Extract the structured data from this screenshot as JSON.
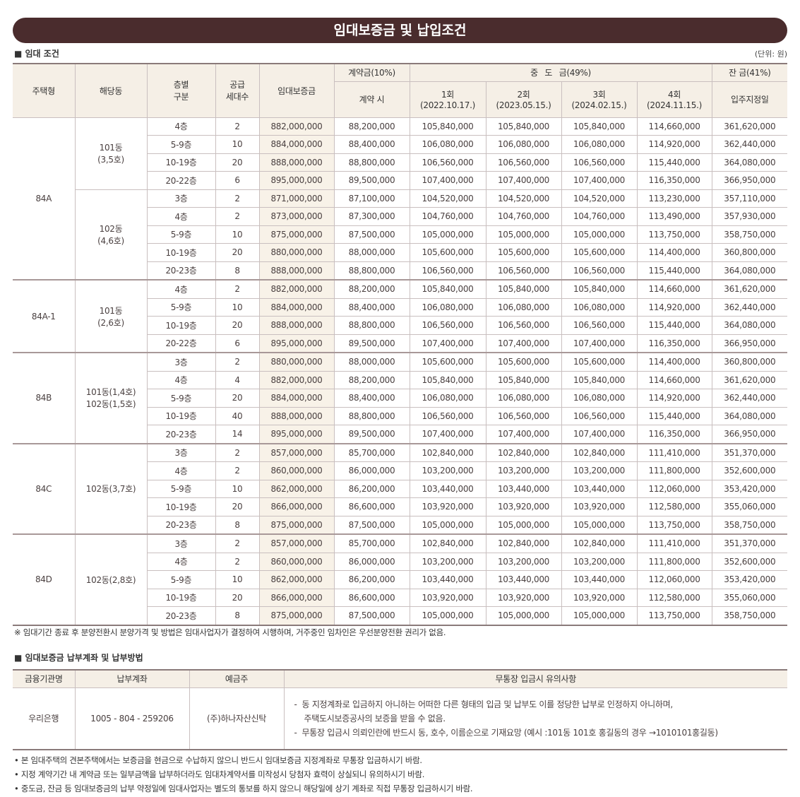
{
  "banner_title": "임대보증금 및 납입조건",
  "section1": {
    "title": "■ 임대 조건",
    "unit": "(단위: 원)"
  },
  "table1": {
    "headers": {
      "type": "주택형",
      "dong": "해당동",
      "floor": "층별\n구분",
      "units": "공급\n세대수",
      "deposit": "임대보증금",
      "contract_group": "계약금(10%)",
      "contract": "계약 시",
      "middle_group": "중 도 금(49%)",
      "m1": "1회\n(2022.10.17.)",
      "m2": "2회\n(2023.05.15.)",
      "m3": "3회\n(2024.02.15.)",
      "m4": "4회\n(2024.11.15.)",
      "balance_group": "잔 금(41%)",
      "balance": "입주지정일"
    },
    "groups": [
      {
        "type": "84A",
        "dongs": [
          {
            "dong": "101동\n(3,5호)",
            "rows": [
              [
                "4층",
                "2",
                "882,000,000",
                "88,200,000",
                "105,840,000",
                "105,840,000",
                "105,840,000",
                "114,660,000",
                "361,620,000"
              ],
              [
                "5-9층",
                "10",
                "884,000,000",
                "88,400,000",
                "106,080,000",
                "106,080,000",
                "106,080,000",
                "114,920,000",
                "362,440,000"
              ],
              [
                "10-19층",
                "20",
                "888,000,000",
                "88,800,000",
                "106,560,000",
                "106,560,000",
                "106,560,000",
                "115,440,000",
                "364,080,000"
              ],
              [
                "20-22층",
                "6",
                "895,000,000",
                "89,500,000",
                "107,400,000",
                "107,400,000",
                "107,400,000",
                "116,350,000",
                "366,950,000"
              ]
            ]
          },
          {
            "dong": "102동\n(4,6호)",
            "rows": [
              [
                "3층",
                "2",
                "871,000,000",
                "87,100,000",
                "104,520,000",
                "104,520,000",
                "104,520,000",
                "113,230,000",
                "357,110,000"
              ],
              [
                "4층",
                "2",
                "873,000,000",
                "87,300,000",
                "104,760,000",
                "104,760,000",
                "104,760,000",
                "113,490,000",
                "357,930,000"
              ],
              [
                "5-9층",
                "10",
                "875,000,000",
                "87,500,000",
                "105,000,000",
                "105,000,000",
                "105,000,000",
                "113,750,000",
                "358,750,000"
              ],
              [
                "10-19층",
                "20",
                "880,000,000",
                "88,000,000",
                "105,600,000",
                "105,600,000",
                "105,600,000",
                "114,400,000",
                "360,800,000"
              ],
              [
                "20-23층",
                "8",
                "888,000,000",
                "88,800,000",
                "106,560,000",
                "106,560,000",
                "106,560,000",
                "115,440,000",
                "364,080,000"
              ]
            ]
          }
        ]
      },
      {
        "type": "84A-1",
        "dongs": [
          {
            "dong": "101동\n(2,6호)",
            "rows": [
              [
                "4층",
                "2",
                "882,000,000",
                "88,200,000",
                "105,840,000",
                "105,840,000",
                "105,840,000",
                "114,660,000",
                "361,620,000"
              ],
              [
                "5-9층",
                "10",
                "884,000,000",
                "88,400,000",
                "106,080,000",
                "106,080,000",
                "106,080,000",
                "114,920,000",
                "362,440,000"
              ],
              [
                "10-19층",
                "20",
                "888,000,000",
                "88,800,000",
                "106,560,000",
                "106,560,000",
                "106,560,000",
                "115,440,000",
                "364,080,000"
              ],
              [
                "20-22층",
                "6",
                "895,000,000",
                "89,500,000",
                "107,400,000",
                "107,400,000",
                "107,400,000",
                "116,350,000",
                "366,950,000"
              ]
            ]
          }
        ]
      },
      {
        "type": "84B",
        "dongs": [
          {
            "dong": "101동(1,4호)\n102동(1,5호)",
            "rows": [
              [
                "3층",
                "2",
                "880,000,000",
                "88,000,000",
                "105,600,000",
                "105,600,000",
                "105,600,000",
                "114,400,000",
                "360,800,000"
              ],
              [
                "4층",
                "4",
                "882,000,000",
                "88,200,000",
                "105,840,000",
                "105,840,000",
                "105,840,000",
                "114,660,000",
                "361,620,000"
              ],
              [
                "5-9층",
                "20",
                "884,000,000",
                "88,400,000",
                "106,080,000",
                "106,080,000",
                "106,080,000",
                "114,920,000",
                "362,440,000"
              ],
              [
                "10-19층",
                "40",
                "888,000,000",
                "88,800,000",
                "106,560,000",
                "106,560,000",
                "106,560,000",
                "115,440,000",
                "364,080,000"
              ],
              [
                "20-23층",
                "14",
                "895,000,000",
                "89,500,000",
                "107,400,000",
                "107,400,000",
                "107,400,000",
                "116,350,000",
                "366,950,000"
              ]
            ]
          }
        ]
      },
      {
        "type": "84C",
        "dongs": [
          {
            "dong": "102동(3,7호)",
            "rows": [
              [
                "3층",
                "2",
                "857,000,000",
                "85,700,000",
                "102,840,000",
                "102,840,000",
                "102,840,000",
                "111,410,000",
                "351,370,000"
              ],
              [
                "4층",
                "2",
                "860,000,000",
                "86,000,000",
                "103,200,000",
                "103,200,000",
                "103,200,000",
                "111,800,000",
                "352,600,000"
              ],
              [
                "5-9층",
                "10",
                "862,000,000",
                "86,200,000",
                "103,440,000",
                "103,440,000",
                "103,440,000",
                "112,060,000",
                "353,420,000"
              ],
              [
                "10-19층",
                "20",
                "866,000,000",
                "86,600,000",
                "103,920,000",
                "103,920,000",
                "103,920,000",
                "112,580,000",
                "355,060,000"
              ],
              [
                "20-23층",
                "8",
                "875,000,000",
                "87,500,000",
                "105,000,000",
                "105,000,000",
                "105,000,000",
                "113,750,000",
                "358,750,000"
              ]
            ]
          }
        ]
      },
      {
        "type": "84D",
        "dongs": [
          {
            "dong": "102동(2,8호)",
            "rows": [
              [
                "3층",
                "2",
                "857,000,000",
                "85,700,000",
                "102,840,000",
                "102,840,000",
                "102,840,000",
                "111,410,000",
                "351,370,000"
              ],
              [
                "4층",
                "2",
                "860,000,000",
                "86,000,000",
                "103,200,000",
                "103,200,000",
                "103,200,000",
                "111,800,000",
                "352,600,000"
              ],
              [
                "5-9층",
                "10",
                "862,000,000",
                "86,200,000",
                "103,440,000",
                "103,440,000",
                "103,440,000",
                "112,060,000",
                "353,420,000"
              ],
              [
                "10-19층",
                "20",
                "866,000,000",
                "86,600,000",
                "103,920,000",
                "103,920,000",
                "103,920,000",
                "112,580,000",
                "355,060,000"
              ],
              [
                "20-23층",
                "8",
                "875,000,000",
                "87,500,000",
                "105,000,000",
                "105,000,000",
                "105,000,000",
                "113,750,000",
                "358,750,000"
              ]
            ]
          }
        ]
      }
    ]
  },
  "note1": "※ 임대기간 종료 후 분양전환시 분양가격 및 방법은 임대사업자가 결정하여 시행하며, 거주중인 임차인은 우선분양전환 권리가 없음.",
  "section2": {
    "title": "■ 임대보증금 납부계좌 및 납부방법"
  },
  "table2": {
    "headers": [
      "금융기관명",
      "납부계좌",
      "예금주",
      "무통장 입금시 유의사항"
    ],
    "row": {
      "bank": "우리은행",
      "account": "1005 - 804 - 259206",
      "holder": "(주)하나자산신탁",
      "notes": [
        "-  동 지정계좌로 입금하지 아니하는 어떠한 다른 형태의 입금 및 납부도 이를 정당한 납부로 인정하지 아니하며,",
        "    주택도시보증공사의 보증을 받을 수 없음.",
        "-  무통장 입금시 의뢰인란에 반드시 동, 호수, 이름순으로 기재요망 (예시 :101동 101호 홍길동의 경우 →1010101홍길동)"
      ]
    }
  },
  "bullets": [
    "• 본 임대주택의 견본주택에서는 보증금을 현금으로 수납하지 않으니 반드시 임대보증금 지정계좌로 무통장 입금하시기 바람.",
    "• 지정 계약기간 내 계약금 또는 일부금액을 납부하더라도 임대차계약서를 미작성시 당첨자 효력이 상실되니 유의하시기 바람.",
    "• 중도금, 잔금 등 임대보증금의 납부 약정일에 임대사업자는 별도의 통보를 하지 않으니 해당일에 상기 계좌로 직접 무통장 입금하시기 바람."
  ],
  "colors": {
    "banner": "#4a2c2d",
    "header_bg": "#f5efe6",
    "deposit_bg": "#f8f2e8"
  }
}
